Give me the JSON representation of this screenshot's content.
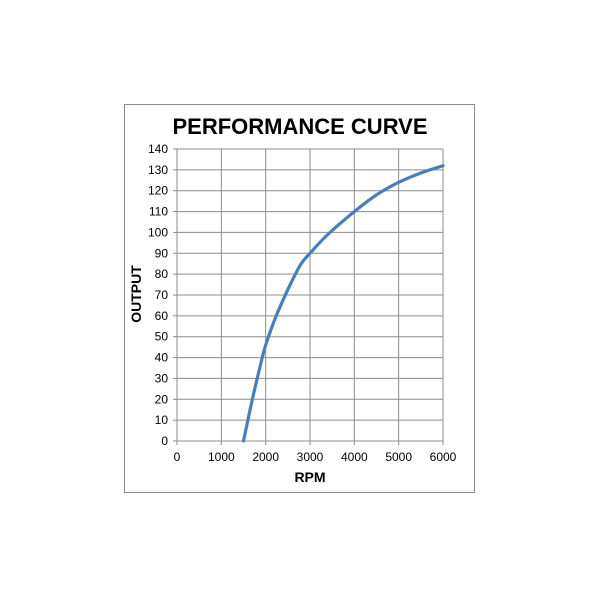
{
  "chart_data": {
    "type": "line",
    "title": "PERFORMANCE CURVE",
    "xlabel": "RPM",
    "ylabel": "OUTPUT",
    "xlim": [
      0,
      6000
    ],
    "ylim": [
      0,
      140
    ],
    "x_ticks": [
      0,
      1000,
      2000,
      3000,
      4000,
      5000,
      6000
    ],
    "y_ticks": [
      0,
      10,
      20,
      30,
      40,
      50,
      60,
      70,
      80,
      90,
      100,
      110,
      120,
      130,
      140
    ],
    "grid": true,
    "colors": {
      "line": "#4a7ebb",
      "grid": "#8c8c8c",
      "axis": "#8c8c8c"
    },
    "series": [
      {
        "x": [
          1500,
          1700,
          1900,
          2000,
          2200,
          2400,
          2600,
          2800,
          3000,
          3400,
          4000,
          4500,
          5000,
          5500,
          6000
        ],
        "y": [
          0,
          20,
          38,
          46,
          58,
          68,
          77,
          85,
          90,
          99,
          110,
          118,
          124,
          128.5,
          132
        ]
      }
    ]
  }
}
